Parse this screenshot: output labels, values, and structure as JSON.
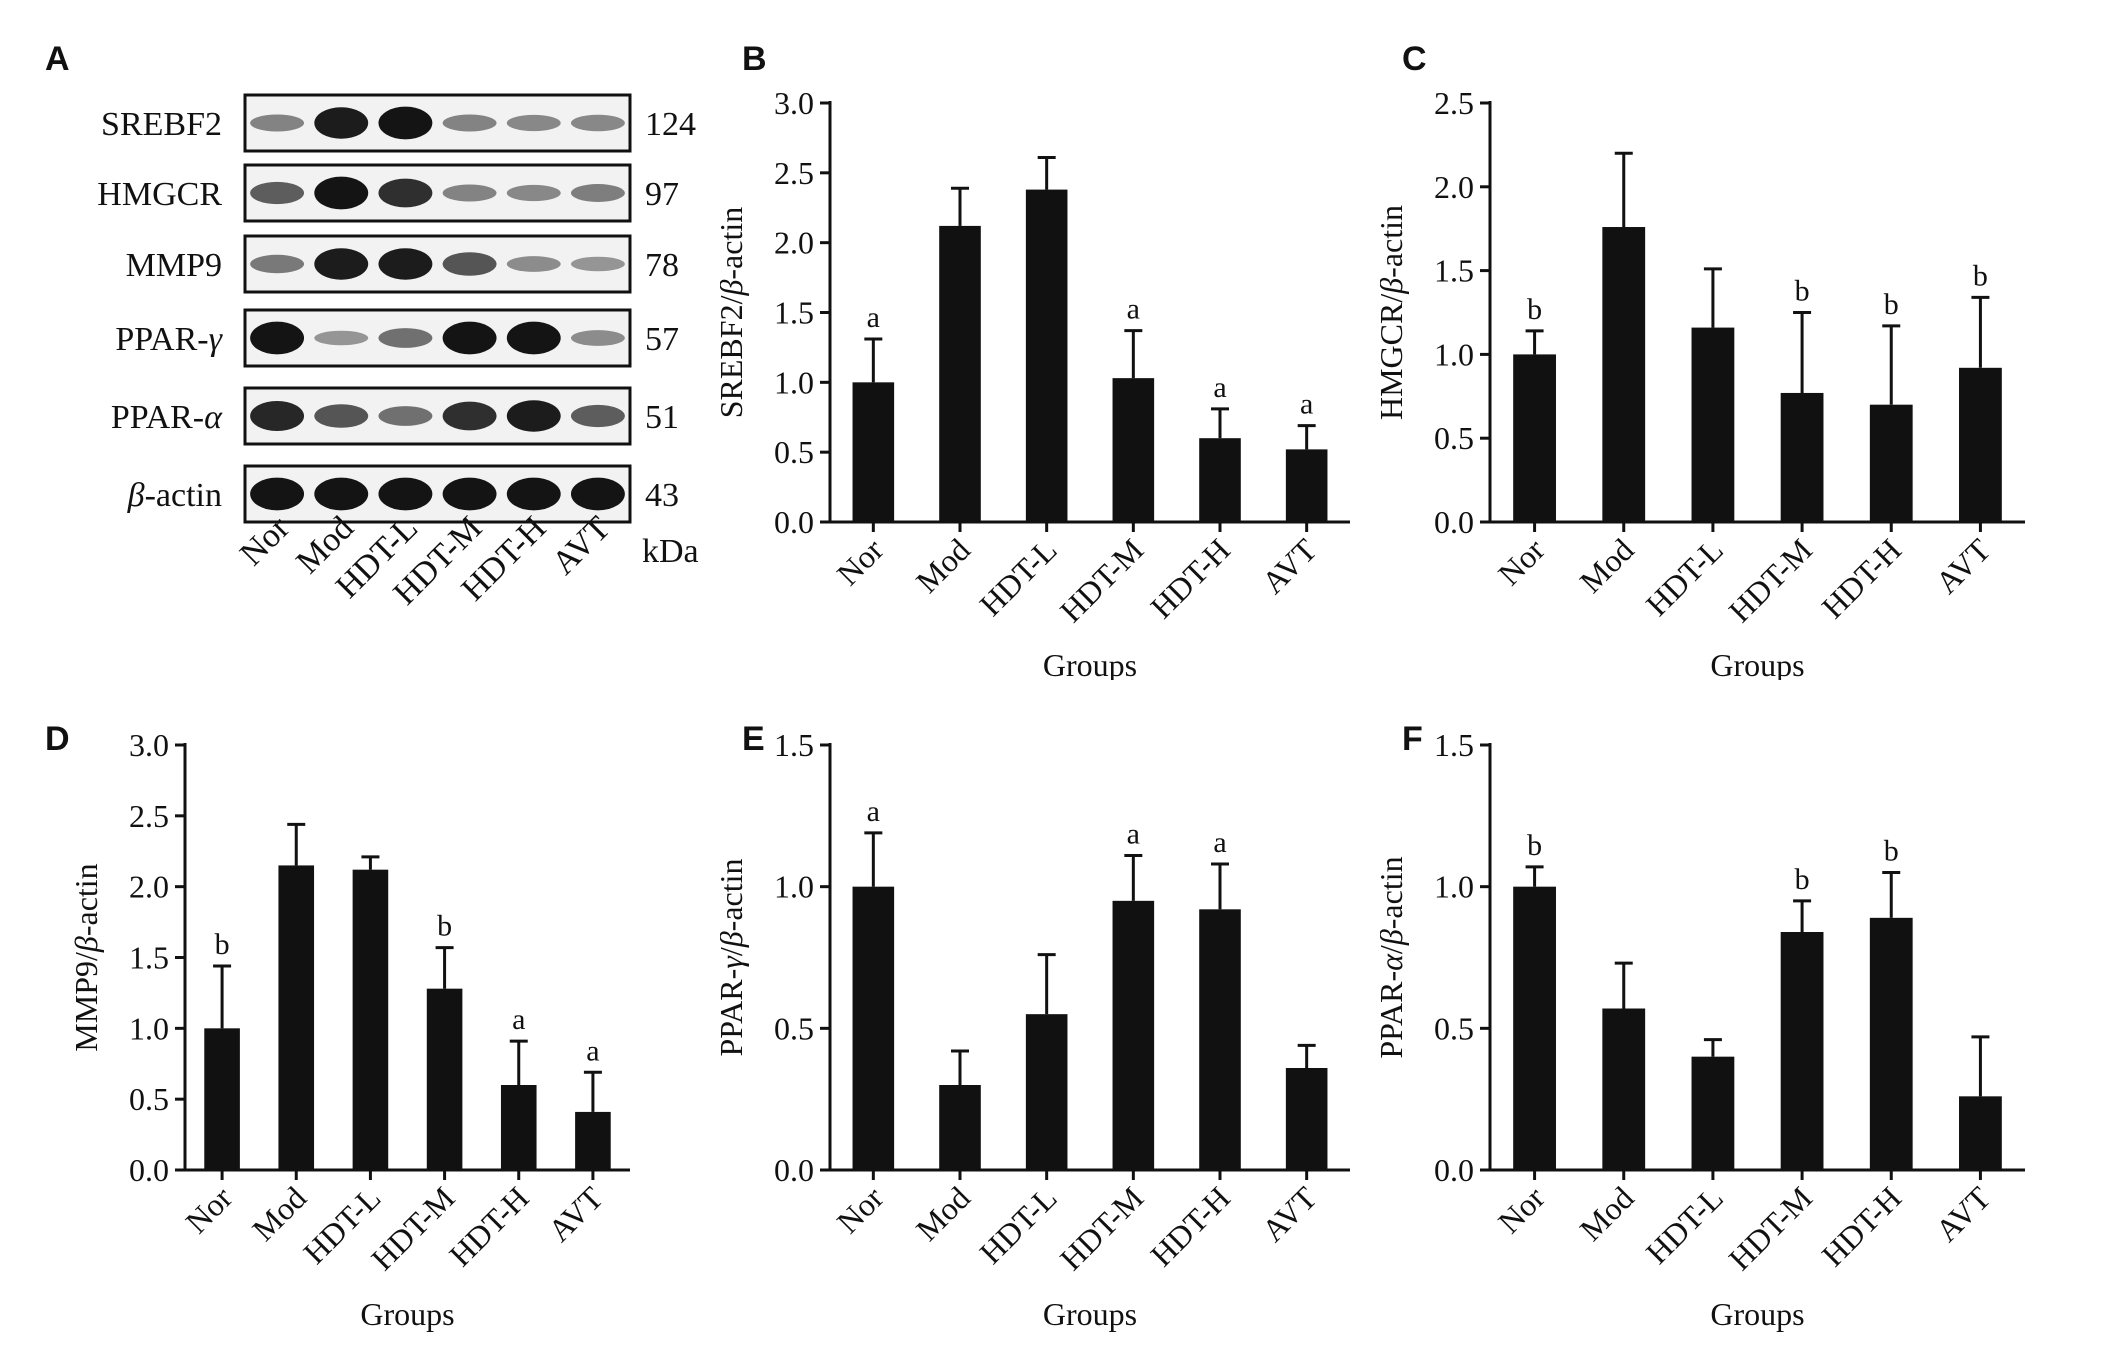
{
  "colors": {
    "bar": "#111111",
    "axis": "#111111",
    "band": "#0a0a0a",
    "membrane": "#f2f2f2"
  },
  "western_blot": {
    "letter": "A",
    "rows": [
      {
        "protein": "SREBF2",
        "greek": "",
        "kda": "124",
        "intensities": [
          0.35,
          0.9,
          0.95,
          0.35,
          0.32,
          0.33
        ]
      },
      {
        "protein": "HMGCR",
        "greek": "",
        "kda": "97",
        "intensities": [
          0.55,
          0.95,
          0.8,
          0.35,
          0.32,
          0.38
        ]
      },
      {
        "protein": "MMP9",
        "greek": "",
        "kda": "78",
        "intensities": [
          0.4,
          0.9,
          0.9,
          0.6,
          0.3,
          0.25
        ]
      },
      {
        "protein": "PPAR-",
        "greek": "γ",
        "kda": "57",
        "intensities": [
          0.95,
          0.25,
          0.45,
          0.95,
          0.95,
          0.3
        ]
      },
      {
        "protein": "PPAR-",
        "greek": "α",
        "kda": "51",
        "intensities": [
          0.85,
          0.6,
          0.45,
          0.8,
          0.9,
          0.55
        ]
      },
      {
        "protein": "-actin",
        "greek": "β",
        "kda": "43",
        "intensities": [
          0.95,
          0.95,
          0.95,
          0.95,
          0.95,
          0.95
        ]
      }
    ],
    "lanes": [
      "Nor",
      "Mod",
      "HDT-L",
      "HDT-M",
      "HDT-H",
      "AVT"
    ],
    "kda_unit": "kDa"
  },
  "chart_data": [
    {
      "letter": "B",
      "type": "bar",
      "title": "",
      "categories": [
        "Nor",
        "Mod",
        "HDT-L",
        "HDT-M",
        "HDT-H",
        "AVT"
      ],
      "values": [
        1.0,
        2.12,
        2.38,
        1.03,
        0.6,
        0.52
      ],
      "errors": [
        0.31,
        0.27,
        0.23,
        0.34,
        0.21,
        0.17
      ],
      "annotations": [
        "a",
        "",
        "",
        "a",
        "a",
        "a"
      ],
      "ylabel_pre": "SREBF2/",
      "ylabel_greek": "β",
      "ylabel_post": "-actin",
      "xlabel": "Groups",
      "ylim": [
        0,
        3.0
      ],
      "ticks": [
        0.0,
        0.5,
        1.0,
        1.5,
        2.0,
        2.5,
        3.0
      ],
      "tick_labels": [
        "0.0",
        "0.5",
        "1.0",
        "1.5",
        "2.0",
        "2.5",
        "3.0"
      ]
    },
    {
      "letter": "C",
      "type": "bar",
      "title": "",
      "categories": [
        "Nor",
        "Mod",
        "HDT-L",
        "HDT-M",
        "HDT-H",
        "AVT"
      ],
      "values": [
        1.0,
        1.76,
        1.16,
        0.77,
        0.7,
        0.92
      ],
      "errors": [
        0.14,
        0.44,
        0.35,
        0.48,
        0.47,
        0.42
      ],
      "annotations": [
        "b",
        "",
        "",
        "b",
        "b",
        "b"
      ],
      "ylabel_pre": "HMGCR/",
      "ylabel_greek": "β",
      "ylabel_post": "-actin",
      "xlabel": "Groups",
      "ylim": [
        0,
        2.5
      ],
      "ticks": [
        0.0,
        0.5,
        1.0,
        1.5,
        2.0,
        2.5
      ],
      "tick_labels": [
        "0.0",
        "0.5",
        "1.0",
        "1.5",
        "2.0",
        "2.5"
      ]
    },
    {
      "letter": "D",
      "type": "bar",
      "title": "",
      "categories": [
        "Nor",
        "Mod",
        "HDT-L",
        "HDT-M",
        "HDT-H",
        "AVT"
      ],
      "values": [
        1.0,
        2.15,
        2.12,
        1.28,
        0.6,
        0.41
      ],
      "errors": [
        0.44,
        0.29,
        0.09,
        0.29,
        0.31,
        0.28
      ],
      "annotations": [
        "b",
        "",
        "",
        "b",
        "a",
        "a"
      ],
      "ylabel_pre": "MMP9/",
      "ylabel_greek": "β",
      "ylabel_post": "-actin",
      "xlabel": "Groups",
      "ylim": [
        0,
        3.0
      ],
      "ticks": [
        0.0,
        0.5,
        1.0,
        1.5,
        2.0,
        2.5,
        3.0
      ],
      "tick_labels": [
        "0.0",
        "0.5",
        "1.0",
        "1.5",
        "2.0",
        "2.5",
        "3.0"
      ]
    },
    {
      "letter": "E",
      "type": "bar",
      "title": "",
      "categories": [
        "Nor",
        "Mod",
        "HDT-L",
        "HDT-M",
        "HDT-H",
        "AVT"
      ],
      "values": [
        1.0,
        0.3,
        0.55,
        0.95,
        0.92,
        0.36
      ],
      "errors": [
        0.19,
        0.12,
        0.21,
        0.16,
        0.16,
        0.08
      ],
      "annotations": [
        "a",
        "",
        "",
        "a",
        "a",
        ""
      ],
      "ylabel_pre": "PPAR-",
      "ylabel_greek": "γ",
      "ylabel_post": "/",
      "ylabel_greek2": "β",
      "ylabel_post2": "-actin",
      "xlabel": "Groups",
      "ylim": [
        0,
        1.5
      ],
      "ticks": [
        0.0,
        0.5,
        1.0,
        1.5
      ],
      "tick_labels": [
        "0.0",
        "0.5",
        "1.0",
        "1.5"
      ]
    },
    {
      "letter": "F",
      "type": "bar",
      "title": "",
      "categories": [
        "Nor",
        "Mod",
        "HDT-L",
        "HDT-M",
        "HDT-H",
        "AVT"
      ],
      "values": [
        1.0,
        0.57,
        0.4,
        0.84,
        0.89,
        0.26
      ],
      "errors": [
        0.07,
        0.16,
        0.06,
        0.11,
        0.16,
        0.21
      ],
      "annotations": [
        "b",
        "",
        "",
        "b",
        "b",
        ""
      ],
      "ylabel_pre": "PPAR-",
      "ylabel_greek": "α",
      "ylabel_post": "/",
      "ylabel_greek2": "β",
      "ylabel_post2": "-actin",
      "xlabel": "Groups",
      "ylim": [
        0,
        1.5
      ],
      "ticks": [
        0.0,
        0.5,
        1.0,
        1.5
      ],
      "tick_labels": [
        "0.0",
        "0.5",
        "1.0",
        "1.5"
      ]
    }
  ]
}
